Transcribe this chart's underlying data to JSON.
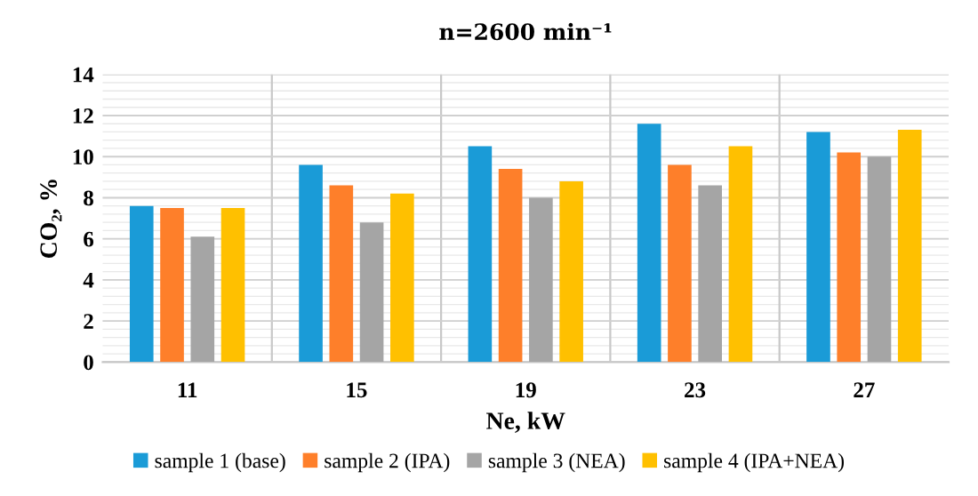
{
  "chart_data": {
    "type": "bar",
    "title": "n=2600 min⁻¹",
    "xlabel": "Ne, kW",
    "ylabel": "CO₂, %",
    "categories": [
      "11",
      "15",
      "19",
      "23",
      "27"
    ],
    "series": [
      {
        "name": "sample 1 (base)",
        "color": "#1a9bd7",
        "values": [
          7.6,
          9.6,
          10.5,
          11.6,
          11.2
        ]
      },
      {
        "name": "sample 2 (IPA)",
        "color": "#fe7f2a",
        "values": [
          7.5,
          8.6,
          9.4,
          9.6,
          10.2
        ]
      },
      {
        "name": "sample 3 (NEA)",
        "color": "#a5a5a5",
        "values": [
          6.1,
          6.8,
          8.0,
          8.6,
          10.0
        ]
      },
      {
        "name": "sample 4 (IPA+NEA)",
        "color": "#ffc000",
        "values": [
          7.5,
          8.2,
          8.8,
          10.5,
          11.3
        ]
      }
    ],
    "ylim": [
      0,
      14
    ],
    "yticks": [
      0,
      2,
      4,
      6,
      8,
      10,
      12,
      14
    ],
    "grid": "y",
    "legend": "bottom"
  }
}
